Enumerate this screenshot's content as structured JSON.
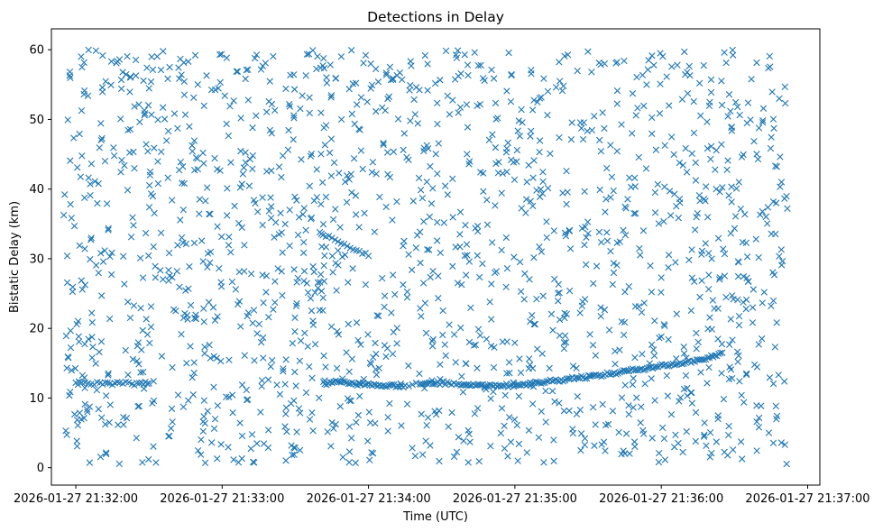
{
  "chart_data": {
    "type": "scatter",
    "title": "Detections in Delay",
    "xlabel": "Time (UTC)",
    "ylabel": "Bistatic Delay (km)",
    "x_scale": "time",
    "xlim": [
      "2026-01-27 21:31:50",
      "2026-01-27 21:37:05"
    ],
    "ylim": [
      -2.5,
      63
    ],
    "xticks": [
      "2026-01-27 21:32:00",
      "2026-01-27 21:33:00",
      "2026-01-27 21:34:00",
      "2026-01-27 21:35:00",
      "2026-01-27 21:36:00",
      "2026-01-27 21:37:00"
    ],
    "yticks": [
      0,
      10,
      20,
      30,
      40,
      50,
      60
    ],
    "grid": false,
    "legend": "none",
    "marker": "x",
    "series": [
      {
        "color": "#1f77b4",
        "points_estimated": true,
        "track_points": [
          [
            "2026-01-27 21:32:00",
            12.2
          ],
          [
            "2026-01-27 21:32:05",
            12.1
          ],
          [
            "2026-01-27 21:32:10",
            12.2
          ],
          [
            "2026-01-27 21:32:14",
            12.1
          ],
          [
            "2026-01-27 21:32:18",
            12.2
          ],
          [
            "2026-01-27 21:32:23",
            12.0
          ],
          [
            "2026-01-27 21:32:27",
            12.2
          ],
          [
            "2026-01-27 21:32:30",
            12.1
          ],
          [
            "2026-01-27 21:33:42",
            12.0
          ],
          [
            "2026-01-27 21:33:45",
            12.2
          ],
          [
            "2026-01-27 21:33:48",
            12.3
          ],
          [
            "2026-01-27 21:33:51",
            12.2
          ],
          [
            "2026-01-27 21:33:54",
            12.1
          ],
          [
            "2026-01-27 21:33:57",
            12.0
          ],
          [
            "2026-01-27 21:34:00",
            12.1
          ],
          [
            "2026-01-27 21:34:03",
            11.9
          ],
          [
            "2026-01-27 21:34:06",
            11.8
          ],
          [
            "2026-01-27 21:34:09",
            11.9
          ],
          [
            "2026-01-27 21:34:12",
            11.7
          ],
          [
            "2026-01-27 21:34:15",
            11.8
          ],
          [
            "2026-01-27 21:34:21",
            12.0
          ],
          [
            "2026-01-27 21:34:24",
            12.1
          ],
          [
            "2026-01-27 21:34:27",
            12.0
          ],
          [
            "2026-01-27 21:34:30",
            12.2
          ],
          [
            "2026-01-27 21:34:33",
            12.1
          ],
          [
            "2026-01-27 21:34:37",
            12.0
          ],
          [
            "2026-01-27 21:34:40",
            11.9
          ],
          [
            "2026-01-27 21:34:43",
            12.0
          ],
          [
            "2026-01-27 21:34:46",
            11.9
          ],
          [
            "2026-01-27 21:34:49",
            11.8
          ],
          [
            "2026-01-27 21:34:52",
            11.9
          ],
          [
            "2026-01-27 21:34:55",
            11.8
          ],
          [
            "2026-01-27 21:34:58",
            11.8
          ],
          [
            "2026-01-27 21:35:01",
            11.9
          ],
          [
            "2026-01-27 21:35:04",
            12.0
          ],
          [
            "2026-01-27 21:35:07",
            12.1
          ],
          [
            "2026-01-27 21:35:10",
            12.2
          ],
          [
            "2026-01-27 21:35:13",
            12.4
          ],
          [
            "2026-01-27 21:35:16",
            12.5
          ],
          [
            "2026-01-27 21:35:19",
            12.6
          ],
          [
            "2026-01-27 21:35:22",
            12.8
          ],
          [
            "2026-01-27 21:35:25",
            12.9
          ],
          [
            "2026-01-27 21:35:28",
            13.0
          ],
          [
            "2026-01-27 21:35:31",
            13.1
          ],
          [
            "2026-01-27 21:35:34",
            13.2
          ],
          [
            "2026-01-27 21:35:37",
            13.4
          ],
          [
            "2026-01-27 21:35:40",
            13.5
          ],
          [
            "2026-01-27 21:35:43",
            13.7
          ],
          [
            "2026-01-27 21:35:46",
            13.9
          ],
          [
            "2026-01-27 21:35:49",
            14.0
          ],
          [
            "2026-01-27 21:35:52",
            14.2
          ],
          [
            "2026-01-27 21:35:55",
            14.4
          ],
          [
            "2026-01-27 21:35:58",
            14.5
          ],
          [
            "2026-01-27 21:36:01",
            14.7
          ],
          [
            "2026-01-27 21:36:04",
            14.8
          ],
          [
            "2026-01-27 21:36:07",
            14.9
          ],
          [
            "2026-01-27 21:36:10",
            15.1
          ],
          [
            "2026-01-27 21:36:13",
            15.3
          ],
          [
            "2026-01-27 21:36:16",
            15.5
          ],
          [
            "2026-01-27 21:36:19",
            15.8
          ],
          [
            "2026-01-27 21:36:22",
            16.1
          ],
          [
            "2026-01-27 21:36:25",
            16.5
          ],
          [
            "2026-01-27 21:33:40",
            33.8
          ],
          [
            "2026-01-27 21:33:45",
            33.0
          ],
          [
            "2026-01-27 21:33:50",
            32.1
          ],
          [
            "2026-01-27 21:33:55",
            31.2
          ],
          [
            "2026-01-27 21:34:00",
            30.4
          ]
        ]
      }
    ],
    "clutter": {
      "x_range": [
        "2026-01-27 21:31:55",
        "2026-01-27 21:36:52"
      ],
      "y_range": [
        0.5,
        60
      ],
      "count": 1600
    }
  }
}
